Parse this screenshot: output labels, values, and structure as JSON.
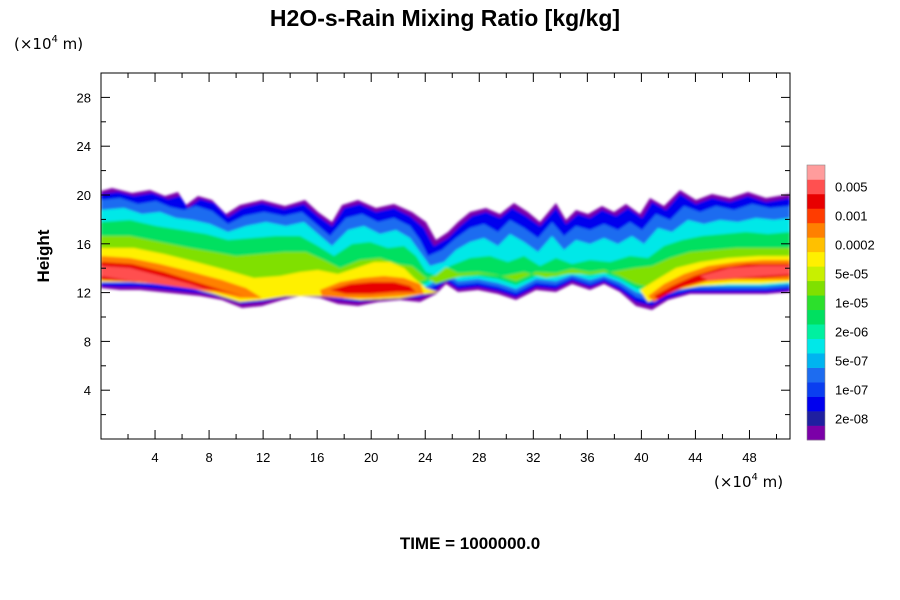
{
  "chart_data": {
    "type": "heatmap",
    "title": "H2O-s-Rain Mixing Ratio [kg/kg]",
    "ylabel": "Height",
    "x_unit_prefix": "(×10",
    "x_unit_exp": "4",
    "x_unit_suffix": " m)",
    "y_unit_prefix": "(×10",
    "y_unit_exp": "4",
    "y_unit_suffix": " m)",
    "xlim": [
      0,
      51
    ],
    "ylim": [
      0,
      30
    ],
    "x_ticks": [
      4,
      8,
      12,
      16,
      20,
      24,
      28,
      32,
      36,
      40,
      44,
      48
    ],
    "y_ticks": [
      4,
      8,
      12,
      16,
      20,
      24,
      28
    ],
    "time_label": "TIME = 1000000.0",
    "colorbar": {
      "colors": [
        "#7b00a8",
        "#1f1fa0",
        "#0000ee",
        "#0a3ef0",
        "#1d6cf0",
        "#00b4f0",
        "#00e8e8",
        "#00f0a0",
        "#00e060",
        "#2ce02c",
        "#80e000",
        "#c8f000",
        "#fff000",
        "#ffc000",
        "#ff8000",
        "#ff3c00",
        "#e80000",
        "#ff5050",
        "#ff9c9c"
      ],
      "labels": [
        "2e-08",
        "1e-07",
        "5e-07",
        "2e-06",
        "1e-05",
        "5e-05",
        "0.0002",
        "0.001",
        "0.005"
      ]
    },
    "field_summary": {
      "layer_bottom": 11.5,
      "layer_top": 20,
      "max_value_cores": [
        {
          "x_range": [
            0,
            12
          ],
          "y": 13.5,
          "value": "0.005"
        },
        {
          "x_range": [
            16,
            25
          ],
          "y": 12.5,
          "value": "0.001"
        },
        {
          "x_range": [
            39,
            51
          ],
          "y": 13.5,
          "value": "0.005"
        }
      ]
    }
  }
}
